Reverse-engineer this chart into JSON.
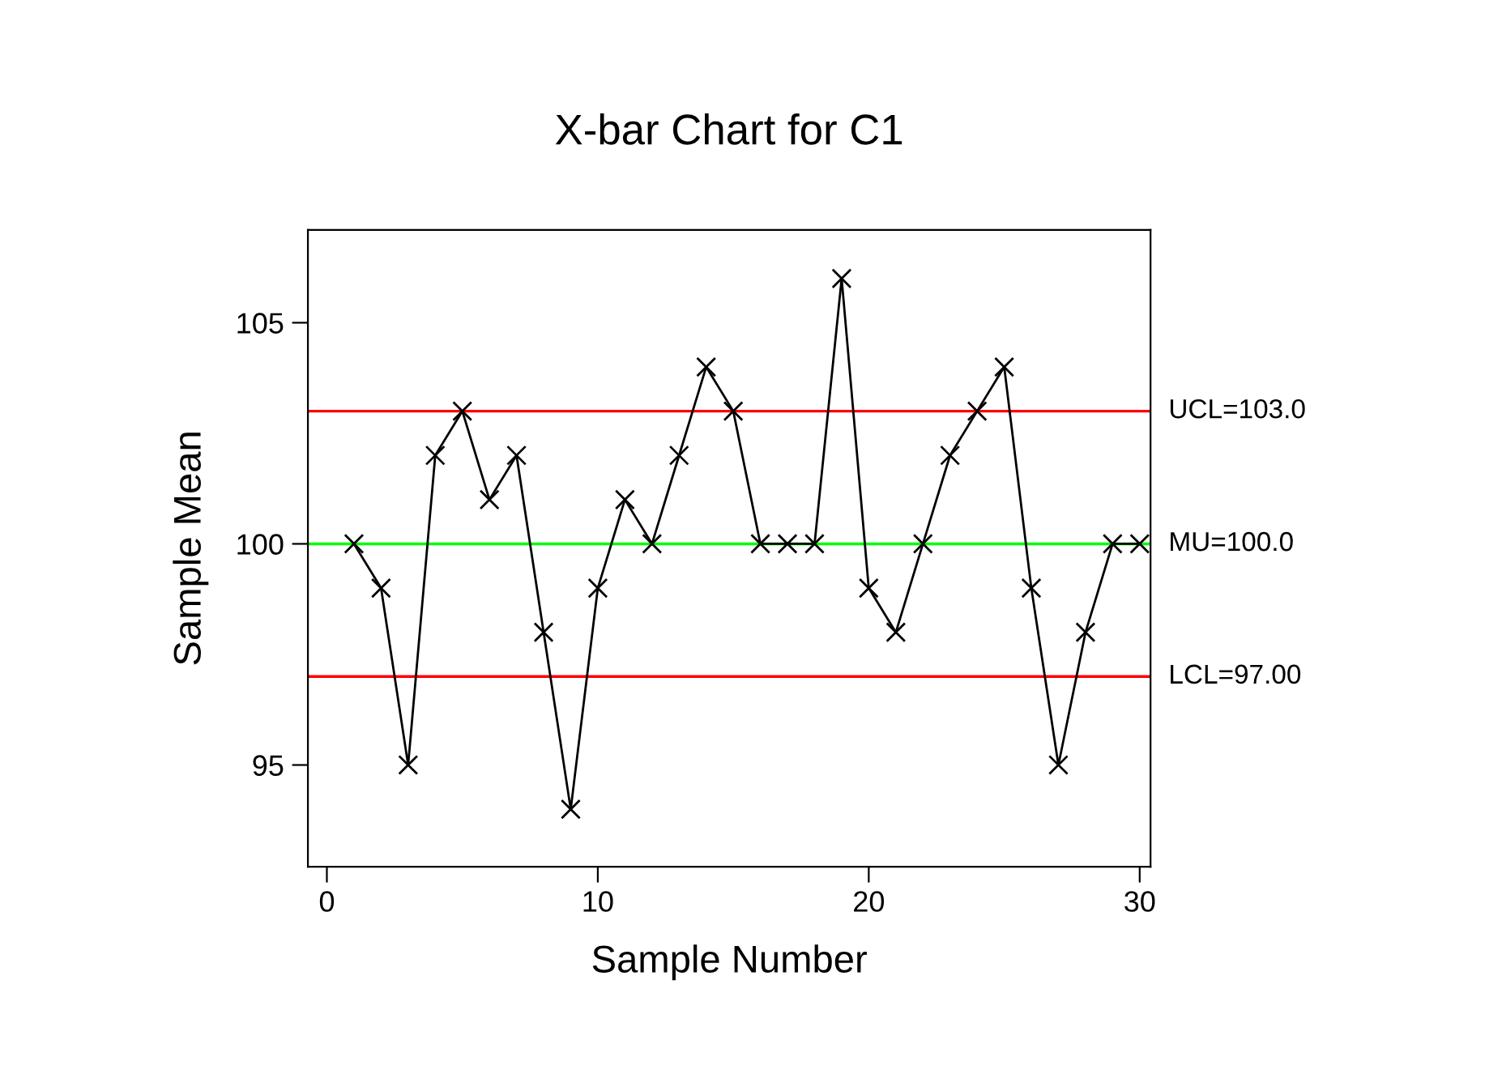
{
  "chart_data": {
    "type": "line",
    "title": "X-bar Chart for C1",
    "xlabel": "Sample Number",
    "ylabel": "Sample Mean",
    "x": [
      1,
      2,
      3,
      4,
      5,
      6,
      7,
      8,
      9,
      10,
      11,
      12,
      13,
      14,
      15,
      16,
      17,
      18,
      19,
      20,
      21,
      22,
      23,
      24,
      25,
      26,
      27,
      28,
      29,
      30
    ],
    "series": [
      {
        "color": "#000000",
        "values": [
          100,
          99,
          95,
          102,
          103,
          101,
          102,
          98,
          94,
          99,
          101,
          100,
          102,
          104,
          103,
          100,
          100,
          100,
          106,
          99,
          98,
          100,
          102,
          103,
          104,
          99,
          95,
          98,
          100,
          100
        ]
      }
    ],
    "marker": "cross",
    "line_style": "solid",
    "grid": false,
    "legend": false,
    "xlim": [
      -0.7,
      30.4
    ],
    "xticks": [
      0,
      10,
      20,
      30
    ],
    "ylim": [
      92.7,
      107.1
    ],
    "yticks": [
      95,
      100,
      105
    ],
    "ref_lines": [
      {
        "axis": "y",
        "value": 103,
        "label": "UCL=103.0",
        "color": "#ff0000"
      },
      {
        "axis": "y",
        "value": 100,
        "label": "MU=100.0",
        "color": "#00ff00"
      },
      {
        "axis": "y",
        "value": 97,
        "label": "LCL=97.00",
        "color": "#ff0000"
      }
    ]
  }
}
